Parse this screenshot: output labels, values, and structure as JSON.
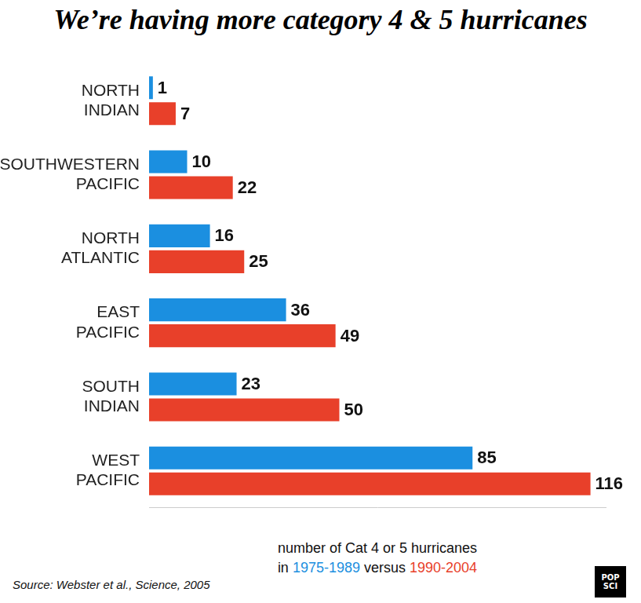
{
  "chart_data": {
    "type": "bar",
    "title": "We’re having more category 4 & 5 hurricanes",
    "orientation": "horizontal",
    "categories": [
      "NORTH INDIAN",
      "SOUTHWESTERN PACIFIC",
      "NORTH ATLANTIC",
      "EAST PACIFIC",
      "SOUTH INDIAN",
      "WEST PACIFIC"
    ],
    "series": [
      {
        "name": "1975-1989",
        "color": "#1b8fe0",
        "values": [
          1,
          10,
          16,
          36,
          23,
          85
        ]
      },
      {
        "name": "1990-2004",
        "color": "#e8402a",
        "values": [
          7,
          22,
          25,
          49,
          50,
          116
        ]
      }
    ],
    "x_label": "number of Cat 4 or 5 hurricanes",
    "legend_words": {
      "before": "in",
      "between": "versus"
    },
    "xlim": [
      0,
      120
    ],
    "grid": false,
    "data_labels": true,
    "tick_labels": "y",
    "source": "Source: Webster et al., Science, 2005",
    "logo": "POP SCI"
  }
}
